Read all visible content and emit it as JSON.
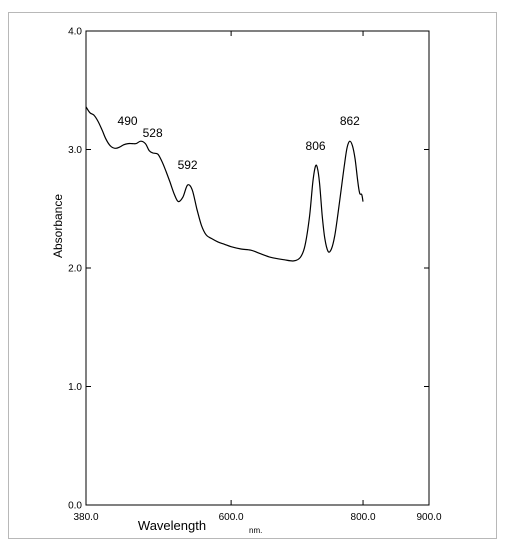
{
  "chart_data": {
    "type": "line",
    "xlabel": "Wavelength",
    "x_unit": "nm.",
    "ylabel": "Absorbance",
    "xlim": [
      380.0,
      900.0
    ],
    "ylim": [
      0.0,
      4.0
    ],
    "x_ticks": [
      {
        "value": 380.0,
        "label": "380.0"
      },
      {
        "value": 600.0,
        "label": "600.0"
      },
      {
        "value": 800.0,
        "label": "800.0"
      },
      {
        "value": 900.0,
        "label": "900.0"
      }
    ],
    "y_ticks": [
      {
        "value": 0.0,
        "label": "0.0"
      },
      {
        "value": 1.0,
        "label": "1.0"
      },
      {
        "value": 2.0,
        "label": "2.0"
      },
      {
        "value": 3.0,
        "label": "3.0"
      },
      {
        "value": 4.0,
        "label": "4.0"
      }
    ],
    "grid": false,
    "series": [
      {
        "points": [
          [
            380,
            3.36
          ],
          [
            386,
            3.31
          ],
          [
            392,
            3.29
          ],
          [
            398,
            3.24
          ],
          [
            404,
            3.17
          ],
          [
            410,
            3.09
          ],
          [
            417,
            3.03
          ],
          [
            424,
            3.01
          ],
          [
            431,
            3.02
          ],
          [
            437,
            3.04
          ],
          [
            444,
            3.05
          ],
          [
            450,
            3.05
          ],
          [
            456,
            3.05
          ],
          [
            463,
            3.07
          ],
          [
            470,
            3.05
          ],
          [
            476,
            2.99
          ],
          [
            482,
            2.97
          ],
          [
            489,
            2.96
          ],
          [
            495,
            2.9
          ],
          [
            501,
            2.82
          ],
          [
            507,
            2.73
          ],
          [
            514,
            2.62
          ],
          [
            520,
            2.56
          ],
          [
            527,
            2.6
          ],
          [
            534,
            2.7
          ],
          [
            541,
            2.66
          ],
          [
            548,
            2.5
          ],
          [
            555,
            2.36
          ],
          [
            562,
            2.28
          ],
          [
            570,
            2.25
          ],
          [
            580,
            2.22
          ],
          [
            590,
            2.2
          ],
          [
            600,
            2.18
          ],
          [
            615,
            2.16
          ],
          [
            630,
            2.15
          ],
          [
            645,
            2.12
          ],
          [
            660,
            2.09
          ],
          [
            680,
            2.07
          ],
          [
            695,
            2.06
          ],
          [
            705,
            2.09
          ],
          [
            712,
            2.19
          ],
          [
            719,
            2.44
          ],
          [
            724,
            2.73
          ],
          [
            728,
            2.86
          ],
          [
            731,
            2.84
          ],
          [
            734,
            2.72
          ],
          [
            738,
            2.45
          ],
          [
            742,
            2.25
          ],
          [
            747,
            2.14
          ],
          [
            752,
            2.16
          ],
          [
            757,
            2.27
          ],
          [
            762,
            2.46
          ],
          [
            768,
            2.71
          ],
          [
            772,
            2.88
          ],
          [
            776,
            3.02
          ],
          [
            780,
            3.07
          ],
          [
            784,
            3.03
          ],
          [
            788,
            2.92
          ],
          [
            792,
            2.73
          ],
          [
            795,
            2.63
          ],
          [
            798,
            2.62
          ],
          [
            800,
            2.56
          ]
        ]
      }
    ],
    "annotations": [
      {
        "text": "490",
        "x": 443,
        "y": 3.07
      },
      {
        "text": "528",
        "x": 481,
        "y": 2.97
      },
      {
        "text": "592",
        "x": 534,
        "y": 2.7
      },
      {
        "text": "806",
        "x": 728,
        "y": 2.86
      },
      {
        "text": "862",
        "x": 780,
        "y": 3.07
      }
    ]
  }
}
